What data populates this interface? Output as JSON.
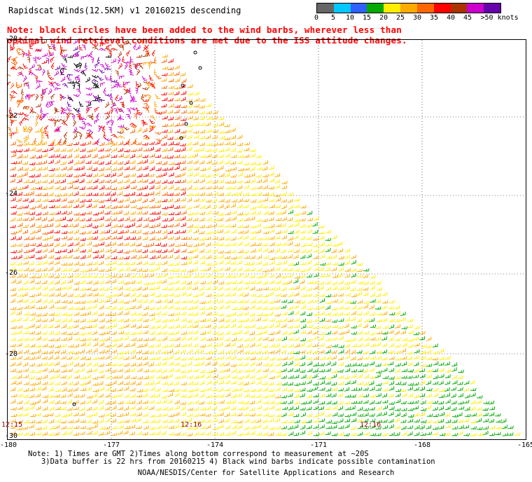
{
  "title": "Rapidscat Winds(12.5KM) v1 20160215 descending",
  "note_line1": "Note: black circles have been added to the wind barbs, wherever less than",
  "note_line2": "optimal wind retrieval conditions are met due to the ISS attitude changes.",
  "legend": {
    "labels": [
      "0",
      "5",
      "10",
      "15",
      "20",
      "25",
      "30",
      "35",
      "40",
      "45",
      ">50 knots"
    ],
    "colors": [
      "#666666",
      "#00c8ff",
      "#3060ff",
      "#00aa00",
      "#ffee00",
      "#ffaa00",
      "#ff6600",
      "#ff0000",
      "#aa3300",
      "#cc00cc",
      "#6600aa"
    ]
  },
  "lat_labels": [
    "-20",
    "-22",
    "-24",
    "-26",
    "-28",
    "-30"
  ],
  "lon_labels": [
    "-180",
    "-177",
    "-174",
    "-171",
    "-168",
    "-165"
  ],
  "times": [
    "12:15",
    "12:16",
    "12:16"
  ],
  "footer_line1": "Note: 1) Times are GMT 2)Times along bottom correspond to measurement at ~20S",
  "footer_line2": "   3)Data buffer is 22 hrs from 20160215 4) Black wind barbs indicate possible contamination",
  "credit": "NOAA/NESDIS/Center for Satellite Applications and Research"
}
